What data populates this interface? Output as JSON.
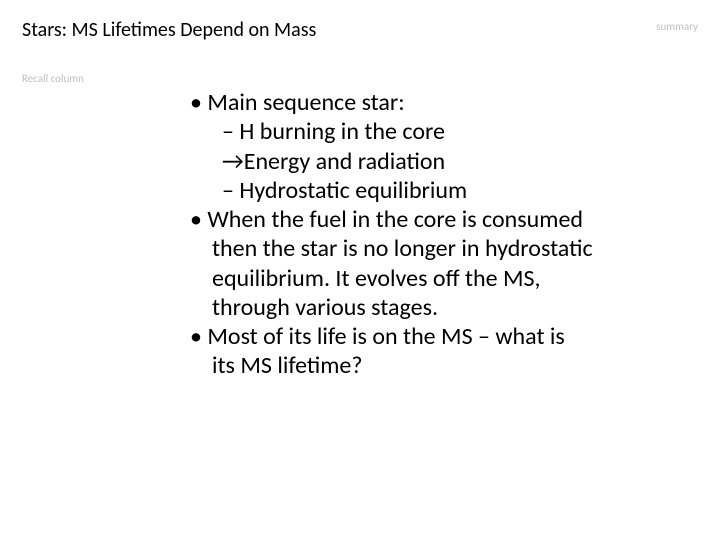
{
  "header": {
    "title": "Stars: MS Lifetimes Depend on Mass",
    "summary_label": "summary"
  },
  "sidebar": {
    "recall_label": "Recall column"
  },
  "content": {
    "b1": "Main sequence star:",
    "b1_s1": "H burning in the core",
    "b1_s2": "→Energy and radiation",
    "b1_s3": "Hydrostatic equilibrium",
    "b2_l1": "When the fuel in the core is consumed",
    "b2_l2": "then the star is no longer in hydrostatic",
    "b2_l3": "equilibrium.  It evolves off the MS,",
    "b2_l4": "through various stages.",
    "b3_l1": "Most of its life is on the MS – what is",
    "b3_l2": "its MS lifetime?"
  },
  "style": {
    "background_color": "#ffffff",
    "text_color": "#000000",
    "muted_color": "#bfbfbf",
    "title_fontsize": 20,
    "body_fontsize": 24,
    "small_fontsize": 11,
    "font_family": "Calibri"
  }
}
